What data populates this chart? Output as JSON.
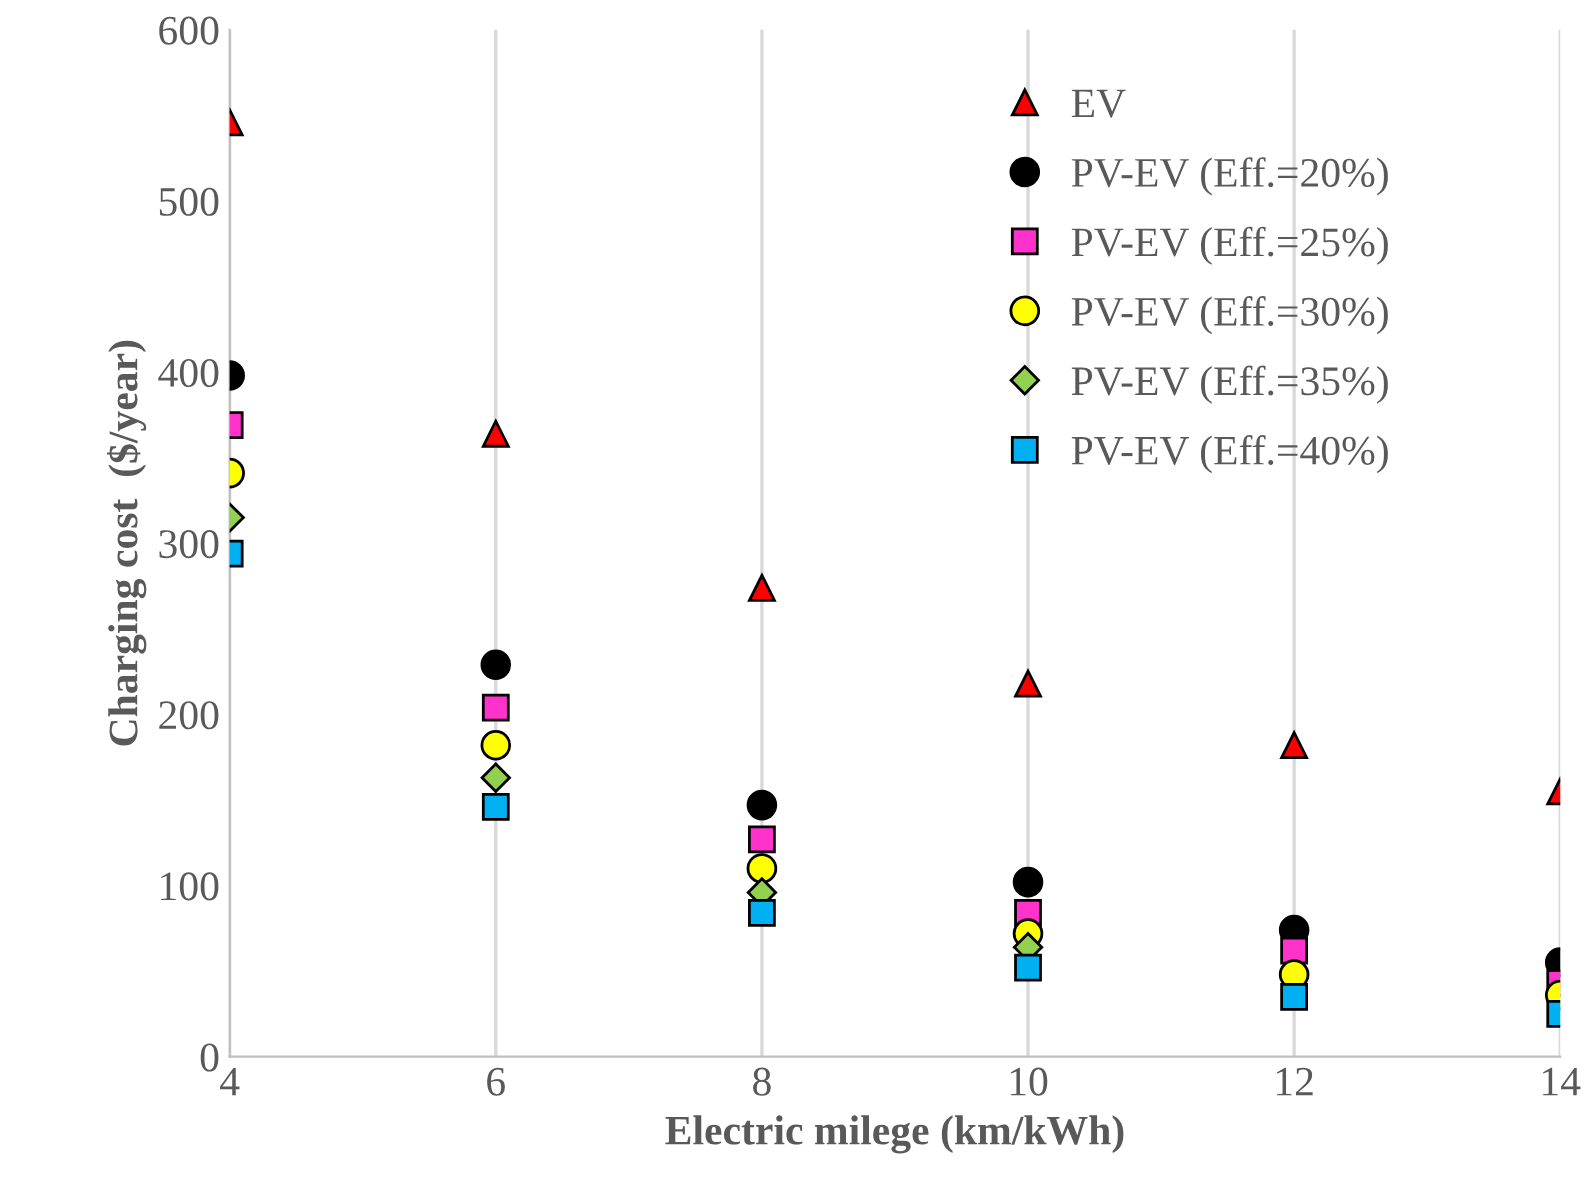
{
  "chart_data": {
    "type": "scatter",
    "xlabel": "Electric milege (km/kWh)",
    "ylabel": "Charging cost  ($/year)",
    "x": [
      4,
      6,
      8,
      10,
      12,
      14
    ],
    "series": [
      {
        "name": "EV",
        "color": "#ff0000",
        "marker": "triangle",
        "values": [
          546,
          364,
          274,
          218,
          182,
          155
        ]
      },
      {
        "name": "PV-EV (Eff.=20%)",
        "color": "#000000",
        "marker": "circle",
        "values": [
          398,
          229,
          147,
          102,
          74,
          55
        ]
      },
      {
        "name": "PV-EV (Eff.=25%)",
        "color": "#ff33cc",
        "marker": "square",
        "values": [
          369,
          204,
          127,
          84,
          62,
          43
        ]
      },
      {
        "name": "PV-EV (Eff.=30%)",
        "color": "#ffff00",
        "marker": "circle",
        "values": [
          341,
          182,
          110,
          72,
          48,
          36
        ]
      },
      {
        "name": "PV-EV (Eff.=35%)",
        "color": "#92d050",
        "marker": "diamond",
        "values": [
          315,
          163,
          96,
          64,
          null,
          null
        ]
      },
      {
        "name": "PV-EV (Eff.=40%)",
        "color": "#00b0f0",
        "marker": "square",
        "values": [
          294,
          146,
          84,
          52,
          35,
          25
        ]
      }
    ],
    "xlim": [
      4,
      14
    ],
    "xticks": [
      4,
      6,
      8,
      10,
      12,
      14
    ],
    "ylim": [
      0,
      600
    ],
    "yticks": [
      0,
      100,
      200,
      300,
      400,
      500,
      600
    ],
    "grid": "x",
    "legend": "top right"
  }
}
